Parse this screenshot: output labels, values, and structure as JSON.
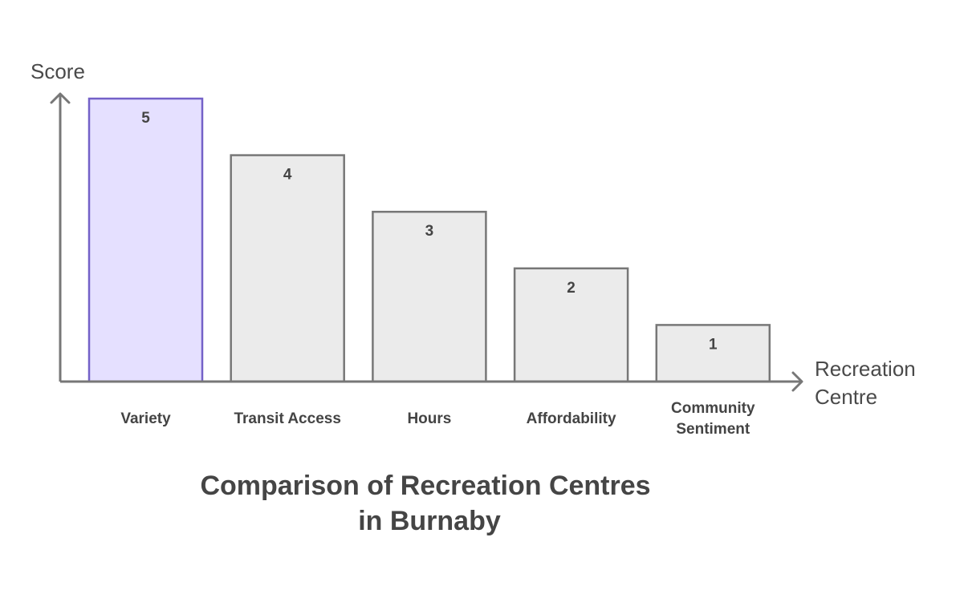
{
  "chart_data": {
    "type": "bar",
    "title_lines": [
      "Comparison of Recreation Centres",
      "in Burnaby"
    ],
    "ylabel": "Score",
    "xlabel_lines": [
      "Recreation",
      "Centre"
    ],
    "categories": [
      [
        "Variety"
      ],
      [
        "Transit Access"
      ],
      [
        "Hours"
      ],
      [
        "Affordability"
      ],
      [
        "Community",
        "Sentiment"
      ]
    ],
    "values": [
      5,
      4,
      3,
      2,
      1
    ],
    "data_labels": [
      "5",
      "4",
      "3",
      "2",
      "1"
    ],
    "ylim": [
      0,
      5
    ],
    "grid": false,
    "highlight_index": 0,
    "colors": {
      "highlight_fill": "#e5e0ff",
      "highlight_stroke": "#7461c8",
      "bar_fill": "#ebebeb",
      "bar_stroke": "#777777",
      "axis": "#777777"
    }
  }
}
